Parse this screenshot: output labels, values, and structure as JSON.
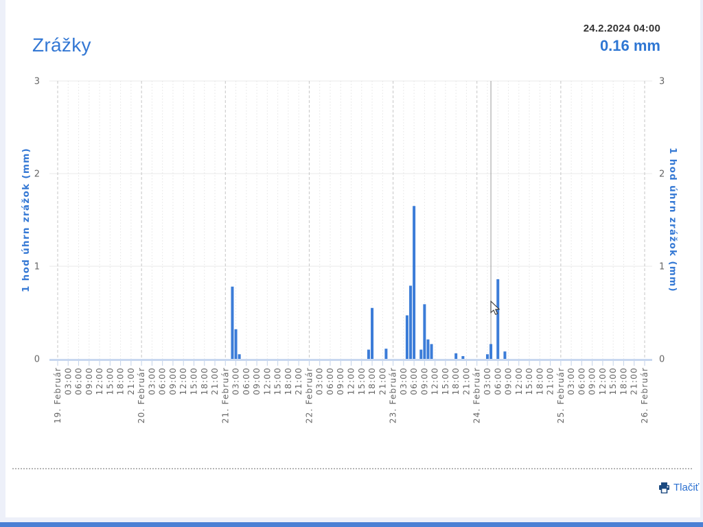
{
  "header": {
    "title": "Zrážky",
    "timestamp": "24.2.2024 04:00",
    "current_value": "0.16 mm"
  },
  "footer": {
    "print_label": "Tlačiť"
  },
  "colors": {
    "accent_blue": "#3478d4",
    "value_blue": "#2e76d3",
    "bar_blue": "#3b7cd8",
    "timestamp_color": "#333333",
    "axis_label_gray": "#666666",
    "grid_minor": "#e4e4e4",
    "grid_day": "#c6c6c6",
    "grid_horizontal": "#e8e8e8",
    "baseline_blue": "#c7d7ef",
    "tick_blue": "#c3d2e9",
    "crosshair_gray": "#999999",
    "print_icon_navy": "#1c4a80",
    "bottom_bar_blue": "#4b80d4",
    "page_background": "#edf0f9",
    "card_background": "#ffffff"
  },
  "chart_data": {
    "type": "bar",
    "title": "Zrážky",
    "ylabel_left": "1 hod úhrn zrážok (mm)",
    "ylabel_right": "1 hod úhrn zrážok (mm)",
    "ylim": [
      0,
      3
    ],
    "yticks": [
      0,
      1,
      2,
      3
    ],
    "grid": true,
    "legend": false,
    "x_start_date": 19,
    "x_end_date": 26,
    "month_label": "Február",
    "day_labels": [
      "19. Február",
      "20. Február",
      "21. Február",
      "22. Február",
      "23. Február",
      "24. Február",
      "25. Február",
      "26. Február"
    ],
    "hour_tick_labels": [
      "03:00",
      "06:00",
      "09:00",
      "12:00",
      "15:00",
      "18:00",
      "21:00"
    ],
    "tick_interval_hours": 3,
    "series": [
      {
        "name": "1 hod úhrn zrážok (mm)",
        "points": [
          {
            "date": "21.2.2024",
            "time": "02:00",
            "value": 0.78
          },
          {
            "date": "21.2.2024",
            "time": "03:00",
            "value": 0.32
          },
          {
            "date": "21.2.2024",
            "time": "04:00",
            "value": 0.05
          },
          {
            "date": "22.2.2024",
            "time": "17:00",
            "value": 0.1
          },
          {
            "date": "22.2.2024",
            "time": "18:00",
            "value": 0.55
          },
          {
            "date": "22.2.2024",
            "time": "22:00",
            "value": 0.11
          },
          {
            "date": "23.2.2024",
            "time": "04:00",
            "value": 0.47
          },
          {
            "date": "23.2.2024",
            "time": "05:00",
            "value": 0.79
          },
          {
            "date": "23.2.2024",
            "time": "06:00",
            "value": 1.65
          },
          {
            "date": "23.2.2024",
            "time": "08:00",
            "value": 0.1
          },
          {
            "date": "23.2.2024",
            "time": "09:00",
            "value": 0.59
          },
          {
            "date": "23.2.2024",
            "time": "10:00",
            "value": 0.21
          },
          {
            "date": "23.2.2024",
            "time": "11:00",
            "value": 0.16
          },
          {
            "date": "23.2.2024",
            "time": "18:00",
            "value": 0.06
          },
          {
            "date": "23.2.2024",
            "time": "20:00",
            "value": 0.03
          },
          {
            "date": "24.2.2024",
            "time": "03:00",
            "value": 0.05
          },
          {
            "date": "24.2.2024",
            "time": "04:00",
            "value": 0.16
          },
          {
            "date": "24.2.2024",
            "time": "06:00",
            "value": 0.86
          },
          {
            "date": "24.2.2024",
            "time": "08:00",
            "value": 0.08
          }
        ]
      }
    ],
    "crosshair": {
      "date": "24.2.2024",
      "time": "04:00",
      "value": 0.16
    }
  }
}
